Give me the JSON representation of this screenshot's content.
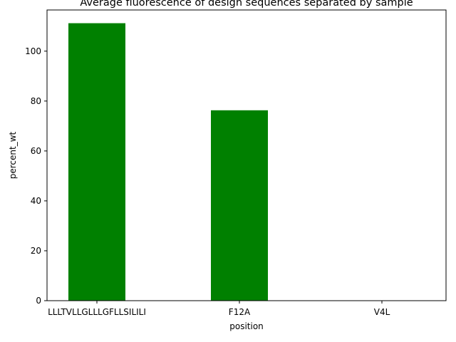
{
  "chart_data": {
    "type": "bar",
    "title": "Average fluorescence of design sequences separated by sample",
    "xlabel": "position",
    "ylabel": "percent_wt",
    "categories": [
      "LLLTVLLGLLLGFLLSILILI",
      "F12A",
      "V4L"
    ],
    "values": [
      111.2,
      76.3,
      0
    ],
    "ylim": [
      0,
      116.5
    ],
    "yticks": [
      0,
      20,
      40,
      60,
      80,
      100
    ],
    "bar_color": "#008000",
    "grid": false,
    "legend": "none"
  }
}
